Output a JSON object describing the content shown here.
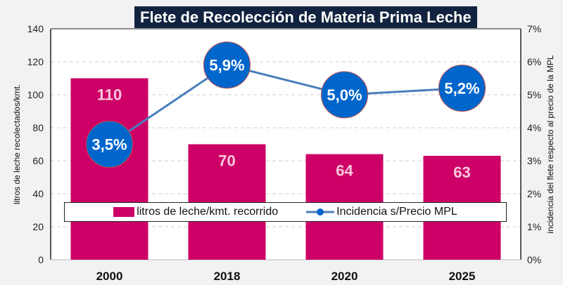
{
  "chart_data": {
    "type": "bar+line",
    "title": "Flete de Recolección de Materia Prima Leche",
    "categories": [
      "2000",
      "2018",
      "2020",
      "2025"
    ],
    "series": [
      {
        "name": "litros de leche/kmt. recorrido",
        "type": "bar",
        "axis": "left",
        "values": [
          110,
          70,
          64,
          63
        ],
        "labels": [
          "110",
          "70",
          "64",
          "63"
        ],
        "color": "#cc0066"
      },
      {
        "name": "Incidencia s/Precio MPL",
        "type": "line",
        "axis": "right",
        "values": [
          3.5,
          5.9,
          5.0,
          5.2
        ],
        "labels": [
          "3,5%",
          "5,9%",
          "5,0%",
          "5,2%"
        ],
        "color": "#4a7ebb",
        "marker_color": "#0066cc"
      }
    ],
    "ylabel": "litros de leche recolectados/kmt.",
    "ylabel_right": "incidencia del flete respecto al precio de la MPL",
    "ylim": [
      0,
      140
    ],
    "yticks": [
      "0",
      "20",
      "40",
      "60",
      "80",
      "100",
      "120",
      "140"
    ],
    "ylim_right": [
      0,
      7
    ],
    "yticks_right": [
      "0%",
      "1%",
      "2%",
      "3%",
      "4%",
      "5%",
      "6%",
      "7%"
    ],
    "grid": true,
    "legend": "bottom-inside"
  }
}
